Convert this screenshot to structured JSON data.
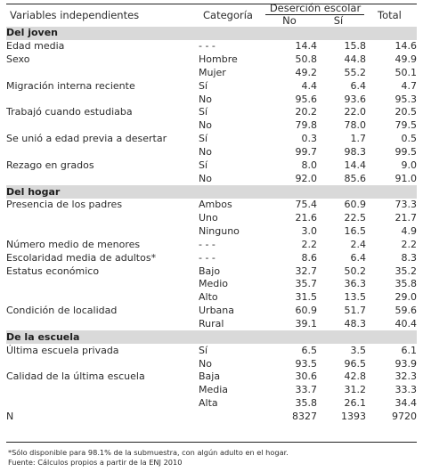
{
  "header": {
    "variables": "Variables independientes",
    "categoria": "Categoría",
    "desercion": "Deserción escolar",
    "no": "No",
    "si": "Sí",
    "total": "Total"
  },
  "rows": [
    {
      "type": "section",
      "label": "Del joven"
    },
    {
      "var": "Edad media",
      "cat": "- - -",
      "no": "14.4",
      "si": "15.8",
      "total": "14.6"
    },
    {
      "var": "Sexo",
      "cat": "Hombre",
      "no": "50.8",
      "si": "44.8",
      "total": "49.9"
    },
    {
      "var": "",
      "cat": "Mujer",
      "no": "49.2",
      "si": "55.2",
      "total": "50.1"
    },
    {
      "var": "Migración interna reciente",
      "cat": "Sí",
      "no": "4.4",
      "si": "6.4",
      "total": "4.7"
    },
    {
      "var": "",
      "cat": "No",
      "no": "95.6",
      "si": "93.6",
      "total": "95.3"
    },
    {
      "var": "Trabajó cuando estudiaba",
      "cat": "Sí",
      "no": "20.2",
      "si": "22.0",
      "total": "20.5"
    },
    {
      "var": "",
      "cat": "No",
      "no": "79.8",
      "si": "78.0",
      "total": "79.5"
    },
    {
      "var": "Se unió a edad previa a desertar",
      "cat": "Sí",
      "no": "0.3",
      "si": "1.7",
      "total": "0.5"
    },
    {
      "var": "",
      "cat": "No",
      "no": "99.7",
      "si": "98.3",
      "total": "99.5"
    },
    {
      "var": "Rezago en grados",
      "cat": "Sí",
      "no": "8.0",
      "si": "14.4",
      "total": "9.0"
    },
    {
      "var": "",
      "cat": "No",
      "no": "92.0",
      "si": "85.6",
      "total": "91.0"
    },
    {
      "type": "section",
      "label": "Del hogar"
    },
    {
      "var": "Presencia de los padres",
      "cat": "Ambos",
      "no": "75.4",
      "si": "60.9",
      "total": "73.3"
    },
    {
      "var": "",
      "cat": "Uno",
      "no": "21.6",
      "si": "22.5",
      "total": "21.7"
    },
    {
      "var": "",
      "cat": "Ninguno",
      "no": "3.0",
      "si": "16.5",
      "total": "4.9"
    },
    {
      "var": "Número medio de menores",
      "cat": "- - -",
      "no": "2.2",
      "si": "2.4",
      "total": "2.2"
    },
    {
      "var": "Escolaridad media de adultos*",
      "cat": "- - -",
      "no": "8.6",
      "si": "6.4",
      "total": "8.3"
    },
    {
      "var": "Estatus económico",
      "cat": "Bajo",
      "no": "32.7",
      "si": "50.2",
      "total": "35.2"
    },
    {
      "var": "",
      "cat": "Medio",
      "no": "35.7",
      "si": "36.3",
      "total": "35.8"
    },
    {
      "var": "",
      "cat": "Alto",
      "no": "31.5",
      "si": "13.5",
      "total": "29.0"
    },
    {
      "var": "Condición de localidad",
      "cat": "Urbana",
      "no": "60.9",
      "si": "51.7",
      "total": "59.6"
    },
    {
      "var": "",
      "cat": "Rural",
      "no": "39.1",
      "si": "48.3",
      "total": "40.4"
    },
    {
      "type": "section",
      "label": "De la escuela"
    },
    {
      "var": "Última escuela privada",
      "cat": "Sí",
      "no": "6.5",
      "si": "3.5",
      "total": "6.1"
    },
    {
      "var": "",
      "cat": "No",
      "no": "93.5",
      "si": "96.5",
      "total": "93.9"
    },
    {
      "var": "Calidad de la última escuela",
      "cat": "Baja",
      "no": "30.6",
      "si": "42.8",
      "total": "32.3"
    },
    {
      "var": "",
      "cat": "Media",
      "no": "33.7",
      "si": "31.2",
      "total": "33.3"
    },
    {
      "var": "",
      "cat": "Alta",
      "no": "35.8",
      "si": "26.1",
      "total": "34.4"
    },
    {
      "var": "N",
      "cat": "",
      "no": "8327",
      "si": "1393",
      "total": "9720"
    }
  ],
  "footnotes": {
    "note": "*Sólo disponible para 98.1% de la submuestra, con algún adulto en el hogar.",
    "source": "Fuente: Cálculos propios a partir de la ENJ 2010"
  }
}
